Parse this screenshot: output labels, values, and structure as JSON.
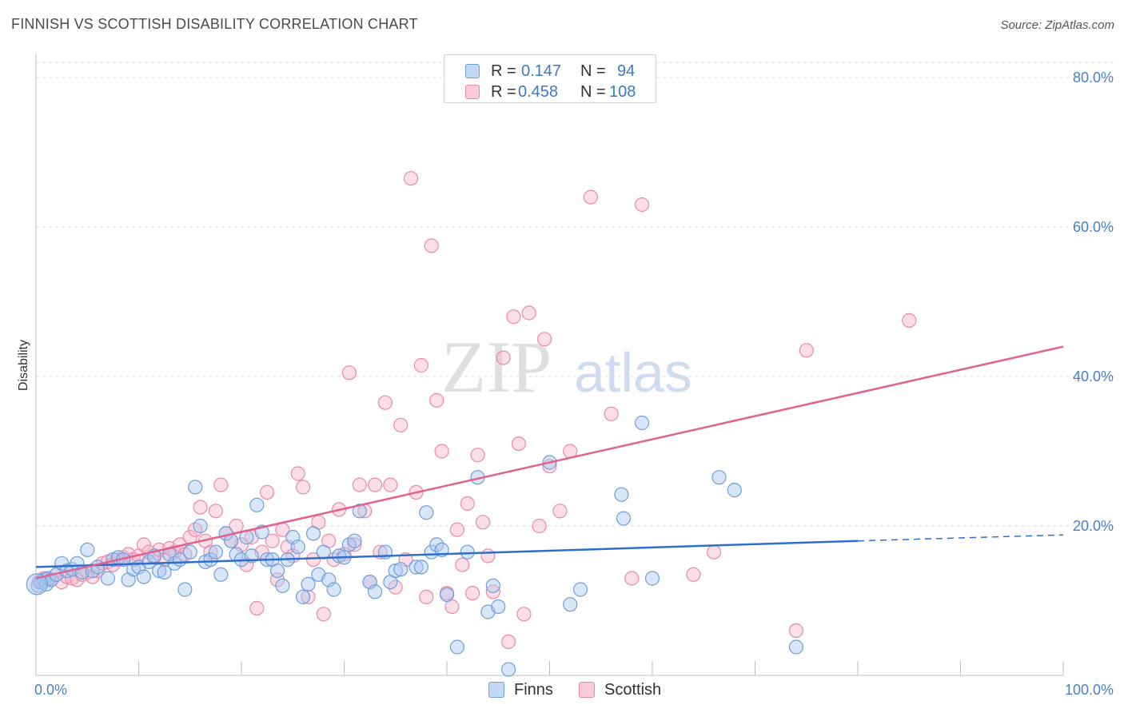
{
  "title": "FINNISH VS SCOTTISH DISABILITY CORRELATION CHART",
  "source": "Source: ZipAtlas.com",
  "watermark": {
    "zip": "ZIP",
    "atlas": "atlas"
  },
  "legend": {
    "rows": [
      {
        "r_label": "R =",
        "r_value": "0.147",
        "n_label": "N =",
        "n_value": "94"
      },
      {
        "r_label": "R =",
        "r_value": "0.458",
        "n_label": "N =",
        "n_value": "108"
      }
    ],
    "bottom": [
      "Finns",
      "Scottish"
    ]
  },
  "colors": {
    "finns_fill": "#a9c8f0",
    "finns_stroke": "#6d9fdc",
    "finns_line": "#2f6fcc",
    "scottish_fill": "#f7b6ca",
    "scottish_stroke": "#e98aa9",
    "scottish_line": "#e0628e",
    "tick_text": "#4a7fc8",
    "grid": "#dcdcdc"
  },
  "chart_data": {
    "type": "scatter",
    "title": "FINNISH VS SCOTTISH DISABILITY CORRELATION CHART",
    "xlabel": "",
    "ylabel": "Disability",
    "xlim": [
      0,
      100
    ],
    "ylim": [
      0,
      81
    ],
    "x_tick_labels": [
      "0.0%",
      "100.0%"
    ],
    "y_ticks": [
      20,
      40,
      60,
      80
    ],
    "y_tick_labels": [
      "20.0%",
      "40.0%",
      "60.0%",
      "80.0%"
    ],
    "grid": "horizontal dashed",
    "legend_position": "top-center",
    "series": [
      {
        "name": "Finns",
        "r": 0.147,
        "n": 94,
        "trend": {
          "x": [
            0,
            80
          ],
          "y": [
            14.5,
            18.0
          ],
          "dashed_extension": {
            "x": [
              80,
              100
            ],
            "y": [
              18.0,
              18.8
            ]
          }
        },
        "points": [
          [
            0.2,
            12.0
          ],
          [
            0.5,
            12.5
          ],
          [
            0.8,
            12.8
          ],
          [
            1.0,
            12.2
          ],
          [
            1.2,
            13.0
          ],
          [
            1.5,
            12.8
          ],
          [
            2.0,
            13.5
          ],
          [
            2.5,
            15.0
          ],
          [
            3.0,
            14.0
          ],
          [
            3.5,
            14.2
          ],
          [
            4.0,
            15.0
          ],
          [
            4.5,
            13.8
          ],
          [
            5.0,
            16.8
          ],
          [
            5.5,
            14.0
          ],
          [
            6.0,
            14.5
          ],
          [
            7.0,
            13.0
          ],
          [
            7.5,
            15.5
          ],
          [
            8.0,
            15.8
          ],
          [
            8.5,
            15.5
          ],
          [
            9.0,
            12.8
          ],
          [
            9.5,
            14.2
          ],
          [
            10.0,
            14.5
          ],
          [
            10.5,
            13.2
          ],
          [
            11.0,
            15.2
          ],
          [
            11.5,
            16.0
          ],
          [
            12.0,
            14.0
          ],
          [
            12.5,
            13.8
          ],
          [
            13.0,
            16.2
          ],
          [
            13.5,
            15.0
          ],
          [
            14.0,
            15.5
          ],
          [
            14.5,
            11.5
          ],
          [
            15.0,
            16.5
          ],
          [
            15.5,
            25.2
          ],
          [
            16.0,
            20.0
          ],
          [
            16.5,
            15.2
          ],
          [
            17.0,
            15.5
          ],
          [
            17.5,
            16.5
          ],
          [
            18.0,
            13.5
          ],
          [
            18.5,
            19.0
          ],
          [
            19.0,
            18.0
          ],
          [
            19.5,
            16.2
          ],
          [
            20.0,
            15.5
          ],
          [
            20.5,
            18.5
          ],
          [
            21.0,
            16.0
          ],
          [
            21.5,
            22.8
          ],
          [
            22.0,
            19.2
          ],
          [
            22.5,
            15.5
          ],
          [
            23.0,
            15.5
          ],
          [
            23.5,
            14.0
          ],
          [
            24.0,
            12.0
          ],
          [
            24.5,
            15.5
          ],
          [
            25.0,
            18.5
          ],
          [
            25.5,
            17.2
          ],
          [
            26.0,
            10.5
          ],
          [
            26.5,
            12.2
          ],
          [
            27.0,
            19.0
          ],
          [
            27.5,
            13.5
          ],
          [
            28.0,
            16.5
          ],
          [
            28.5,
            12.8
          ],
          [
            29.0,
            11.5
          ],
          [
            29.5,
            16.0
          ],
          [
            30.0,
            15.8
          ],
          [
            30.5,
            17.5
          ],
          [
            31.0,
            18.0
          ],
          [
            31.5,
            22.0
          ],
          [
            32.5,
            12.5
          ],
          [
            33.0,
            11.2
          ],
          [
            34.0,
            16.5
          ],
          [
            34.5,
            12.5
          ],
          [
            35.0,
            14.0
          ],
          [
            35.5,
            14.2
          ],
          [
            37.0,
            14.5
          ],
          [
            37.5,
            14.5
          ],
          [
            38.0,
            21.8
          ],
          [
            38.5,
            16.5
          ],
          [
            39.0,
            17.5
          ],
          [
            39.5,
            16.8
          ],
          [
            40.0,
            10.8
          ],
          [
            41.0,
            3.8
          ],
          [
            42.0,
            16.5
          ],
          [
            43.0,
            26.5
          ],
          [
            44.0,
            8.5
          ],
          [
            44.5,
            12.0
          ],
          [
            45.0,
            9.2
          ],
          [
            46.0,
            0.8
          ],
          [
            50.0,
            28.5
          ],
          [
            52.0,
            9.5
          ],
          [
            53.0,
            11.5
          ],
          [
            57.0,
            24.2
          ],
          [
            57.2,
            21.0
          ],
          [
            59.0,
            33.8
          ],
          [
            60.0,
            13.0
          ],
          [
            66.5,
            26.5
          ],
          [
            68.0,
            24.8
          ],
          [
            74.0,
            3.8
          ]
        ]
      },
      {
        "name": "Scottish",
        "r": 0.458,
        "n": 108,
        "trend": {
          "x": [
            0,
            100
          ],
          "y": [
            13.0,
            44.0
          ]
        },
        "points": [
          [
            0.3,
            12.5
          ],
          [
            0.8,
            13.0
          ],
          [
            1.5,
            12.8
          ],
          [
            2.0,
            13.5
          ],
          [
            2.5,
            12.5
          ],
          [
            3.0,
            13.2
          ],
          [
            3.5,
            13.0
          ],
          [
            4.0,
            12.8
          ],
          [
            4.5,
            13.5
          ],
          [
            5.0,
            13.8
          ],
          [
            5.5,
            13.2
          ],
          [
            6.0,
            14.0
          ],
          [
            6.5,
            15.0
          ],
          [
            7.0,
            15.2
          ],
          [
            7.5,
            14.8
          ],
          [
            8.0,
            15.5
          ],
          [
            8.5,
            15.8
          ],
          [
            9.0,
            16.2
          ],
          [
            9.5,
            15.5
          ],
          [
            10.0,
            16.0
          ],
          [
            10.5,
            17.5
          ],
          [
            11.0,
            16.5
          ],
          [
            11.5,
            15.8
          ],
          [
            12.0,
            16.8
          ],
          [
            12.5,
            15.5
          ],
          [
            13.0,
            17.0
          ],
          [
            13.5,
            16.5
          ],
          [
            14.0,
            17.5
          ],
          [
            14.5,
            16.2
          ],
          [
            15.0,
            18.5
          ],
          [
            15.5,
            19.5
          ],
          [
            16.0,
            22.5
          ],
          [
            16.5,
            18.0
          ],
          [
            17.0,
            16.5
          ],
          [
            17.5,
            22.0
          ],
          [
            18.0,
            25.5
          ],
          [
            18.5,
            19.0
          ],
          [
            19.0,
            18.0
          ],
          [
            19.5,
            20.0
          ],
          [
            20.0,
            17.5
          ],
          [
            20.5,
            14.8
          ],
          [
            21.0,
            18.5
          ],
          [
            21.5,
            9.0
          ],
          [
            22.0,
            16.5
          ],
          [
            22.5,
            24.5
          ],
          [
            23.0,
            18.0
          ],
          [
            23.5,
            12.8
          ],
          [
            24.0,
            19.5
          ],
          [
            24.5,
            17.2
          ],
          [
            25.0,
            16.0
          ],
          [
            25.5,
            27.0
          ],
          [
            26.0,
            25.2
          ],
          [
            26.5,
            10.5
          ],
          [
            27.0,
            15.5
          ],
          [
            27.5,
            20.5
          ],
          [
            28.0,
            8.2
          ],
          [
            28.5,
            18.0
          ],
          [
            29.0,
            15.5
          ],
          [
            29.5,
            22.2
          ],
          [
            30.0,
            16.2
          ],
          [
            30.5,
            40.5
          ],
          [
            31.0,
            17.5
          ],
          [
            31.5,
            25.5
          ],
          [
            32.0,
            22.0
          ],
          [
            32.5,
            12.5
          ],
          [
            33.0,
            25.5
          ],
          [
            33.5,
            16.5
          ],
          [
            34.0,
            36.5
          ],
          [
            34.5,
            25.5
          ],
          [
            35.0,
            11.8
          ],
          [
            35.5,
            33.5
          ],
          [
            36.0,
            15.5
          ],
          [
            36.5,
            66.5
          ],
          [
            37.0,
            24.5
          ],
          [
            37.5,
            41.5
          ],
          [
            38.0,
            10.5
          ],
          [
            38.5,
            57.5
          ],
          [
            39.0,
            36.8
          ],
          [
            39.5,
            30.0
          ],
          [
            40.0,
            11.0
          ],
          [
            40.5,
            9.2
          ],
          [
            41.0,
            19.5
          ],
          [
            41.5,
            14.8
          ],
          [
            42.0,
            23.0
          ],
          [
            42.5,
            11.0
          ],
          [
            43.0,
            29.5
          ],
          [
            43.5,
            20.5
          ],
          [
            44.0,
            16.0
          ],
          [
            44.5,
            11.2
          ],
          [
            45.5,
            42.5
          ],
          [
            46.0,
            4.5
          ],
          [
            46.5,
            48.0
          ],
          [
            47.0,
            31.0
          ],
          [
            47.5,
            8.2
          ],
          [
            48.0,
            48.5
          ],
          [
            49.0,
            20.0
          ],
          [
            49.5,
            45.0
          ],
          [
            50.0,
            28.0
          ],
          [
            51.0,
            22.0
          ],
          [
            52.0,
            30.0
          ],
          [
            54.0,
            64.0
          ],
          [
            56.0,
            35.0
          ],
          [
            58.0,
            13.0
          ],
          [
            59.0,
            63.0
          ],
          [
            64.0,
            13.5
          ],
          [
            66.0,
            16.5
          ],
          [
            74.0,
            6.0
          ],
          [
            75.0,
            43.5
          ],
          [
            85.0,
            47.5
          ]
        ]
      }
    ]
  }
}
